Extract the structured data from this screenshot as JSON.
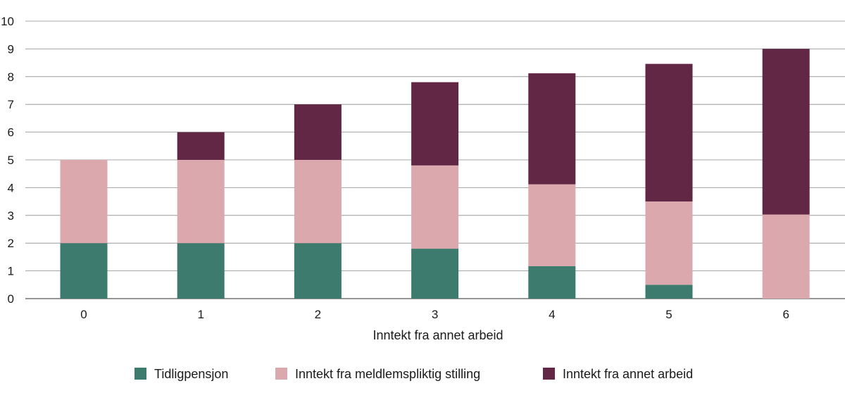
{
  "chart_data": {
    "type": "bar",
    "stacked": true,
    "title": "",
    "xlabel": "Inntekt fra annet arbeid",
    "ylabel": "",
    "categories": [
      "0",
      "1",
      "2",
      "3",
      "4",
      "5",
      "6"
    ],
    "ylim": [
      0,
      10
    ],
    "yticks": [
      "0",
      "1",
      "2",
      "3",
      "4",
      "5",
      "6",
      "7",
      "8",
      "9",
      "10"
    ],
    "grid": true,
    "legend_position": "bottom",
    "series": [
      {
        "name": "Tidligpensjon",
        "color": "#3d7b6f",
        "values": [
          2,
          2,
          2,
          1.8,
          1.17,
          0.5,
          0
        ]
      },
      {
        "name": "Inntekt fra meldlemspliktig stilling",
        "color": "#dba8ad",
        "values": [
          3,
          3,
          3,
          3,
          2.95,
          3.0,
          3.03
        ]
      },
      {
        "name": "Inntekt fra annet arbeid",
        "color": "#612745",
        "values": [
          0,
          1,
          2,
          3,
          4.0,
          4.96,
          5.97
        ]
      }
    ]
  }
}
